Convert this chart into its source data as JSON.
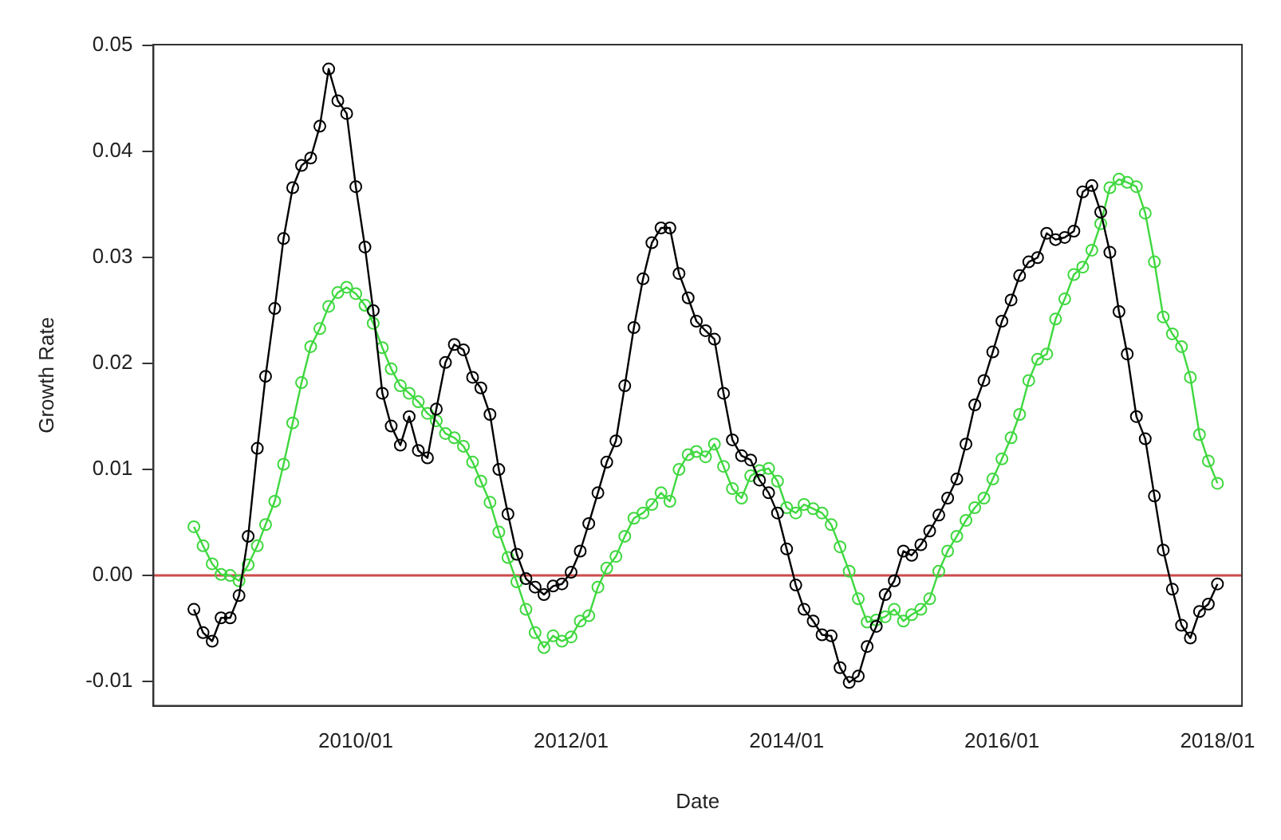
{
  "chart_data": {
    "type": "line",
    "xlabel": "Date",
    "ylabel": "Growth Rate",
    "x": [
      "2008-07",
      "2008-08",
      "2008-09",
      "2008-10",
      "2008-11",
      "2008-12",
      "2009-01",
      "2009-02",
      "2009-03",
      "2009-04",
      "2009-05",
      "2009-06",
      "2009-07",
      "2009-08",
      "2009-09",
      "2009-10",
      "2009-11",
      "2009-12",
      "2010-01",
      "2010-02",
      "2010-03",
      "2010-04",
      "2010-05",
      "2010-06",
      "2010-07",
      "2010-08",
      "2010-09",
      "2010-10",
      "2010-11",
      "2010-12",
      "2011-01",
      "2011-02",
      "2011-03",
      "2011-04",
      "2011-05",
      "2011-06",
      "2011-07",
      "2011-08",
      "2011-09",
      "2011-10",
      "2011-11",
      "2011-12",
      "2012-01",
      "2012-02",
      "2012-03",
      "2012-04",
      "2012-05",
      "2012-06",
      "2012-07",
      "2012-08",
      "2012-09",
      "2012-10",
      "2012-11",
      "2012-12",
      "2013-01",
      "2013-02",
      "2013-03",
      "2013-04",
      "2013-05",
      "2013-06",
      "2013-07",
      "2013-08",
      "2013-09",
      "2013-10",
      "2013-11",
      "2013-12",
      "2014-01",
      "2014-02",
      "2014-03",
      "2014-04",
      "2014-05",
      "2014-06",
      "2014-07",
      "2014-08",
      "2014-09",
      "2014-10",
      "2014-11",
      "2014-12",
      "2015-01",
      "2015-02",
      "2015-03",
      "2015-04",
      "2015-05",
      "2015-06",
      "2015-07",
      "2015-08",
      "2015-09",
      "2015-10",
      "2015-11",
      "2015-12",
      "2016-01",
      "2016-02",
      "2016-03",
      "2016-04",
      "2016-05",
      "2016-06",
      "2016-07",
      "2016-08",
      "2016-09",
      "2016-10",
      "2016-11",
      "2016-12",
      "2017-01",
      "2017-02",
      "2017-03",
      "2017-04",
      "2017-05",
      "2017-06",
      "2017-07",
      "2017-08",
      "2017-09",
      "2017-10",
      "2017-11",
      "2017-12",
      "2018-01"
    ],
    "series": [
      {
        "color": "#000000",
        "values": [
          -0.0032,
          -0.0054,
          -0.0062,
          -0.004,
          -0.004,
          -0.0019,
          0.0037,
          0.012,
          0.0188,
          0.0252,
          0.0318,
          0.0366,
          0.0387,
          0.0394,
          0.0424,
          0.0478,
          0.0448,
          0.0436,
          0.0367,
          0.031,
          0.025,
          0.0172,
          0.0141,
          0.0123,
          0.015,
          0.0118,
          0.0111,
          0.0157,
          0.0201,
          0.0218,
          0.0213,
          0.0187,
          0.0177,
          0.0152,
          0.01,
          0.0058,
          0.002,
          -0.0003,
          -0.0011,
          -0.0018,
          -0.001,
          -0.0008,
          0.0003,
          0.0023,
          0.0049,
          0.0078,
          0.0107,
          0.0127,
          0.0179,
          0.0234,
          0.028,
          0.0314,
          0.0328,
          0.0328,
          0.0285,
          0.0262,
          0.024,
          0.0231,
          0.0223,
          0.0172,
          0.0128,
          0.0113,
          0.0109,
          0.009,
          0.0078,
          0.0059,
          0.0025,
          -0.0009,
          -0.0032,
          -0.0043,
          -0.0056,
          -0.0057,
          -0.0087,
          -0.0101,
          -0.0095,
          -0.0067,
          -0.0048,
          -0.0018,
          -0.0005,
          0.0023,
          0.0019,
          0.0029,
          0.0042,
          0.0057,
          0.0073,
          0.0091,
          0.0124,
          0.0161,
          0.0184,
          0.0211,
          0.024,
          0.026,
          0.0283,
          0.0296,
          0.03,
          0.0323,
          0.0317,
          0.0319,
          0.0325,
          0.0362,
          0.0368,
          0.0343,
          0.0305,
          0.0249,
          0.0209,
          0.015,
          0.0129,
          0.0075,
          0.0024,
          -0.0013,
          -0.0047,
          -0.0059,
          -0.0034,
          -0.0027,
          -0.0008
        ]
      },
      {
        "color": "#3fd83f",
        "values": [
          0.0046,
          0.0028,
          0.0011,
          0.0001,
          0.0,
          -0.0005,
          0.001,
          0.0028,
          0.0048,
          0.007,
          0.0105,
          0.0144,
          0.0182,
          0.0216,
          0.0233,
          0.0254,
          0.0267,
          0.0272,
          0.0266,
          0.0255,
          0.0238,
          0.0215,
          0.0195,
          0.0179,
          0.0172,
          0.0164,
          0.0153,
          0.0146,
          0.0134,
          0.013,
          0.0122,
          0.0107,
          0.0089,
          0.0069,
          0.0041,
          0.0017,
          -0.0006,
          -0.0032,
          -0.0054,
          -0.0068,
          -0.0057,
          -0.0062,
          -0.0058,
          -0.0043,
          -0.0038,
          -0.0011,
          0.0007,
          0.0018,
          0.0037,
          0.0054,
          0.0059,
          0.0067,
          0.0078,
          0.007,
          0.01,
          0.0114,
          0.0117,
          0.0112,
          0.0124,
          0.0103,
          0.0082,
          0.0073,
          0.0094,
          0.0099,
          0.0101,
          0.0089,
          0.0064,
          0.0059,
          0.0067,
          0.0063,
          0.0059,
          0.0048,
          0.0027,
          0.0004,
          -0.0022,
          -0.0044,
          -0.0042,
          -0.0039,
          -0.0032,
          -0.0043,
          -0.0037,
          -0.0032,
          -0.0022,
          0.0004,
          0.0023,
          0.0037,
          0.0052,
          0.0064,
          0.0073,
          0.0091,
          0.011,
          0.013,
          0.0152,
          0.0184,
          0.0204,
          0.0209,
          0.0242,
          0.0261,
          0.0284,
          0.0291,
          0.0307,
          0.0332,
          0.0366,
          0.0374,
          0.0371,
          0.0367,
          0.0342,
          0.0296,
          0.0244,
          0.0228,
          0.0216,
          0.0187,
          0.0133,
          0.0108,
          0.0087
        ]
      }
    ],
    "xlim": [
      "2008-02-15",
      "2018-03-25"
    ],
    "xticks": [
      {
        "value": "2010-01",
        "label": "2010/01"
      },
      {
        "value": "2012-01",
        "label": "2012/01"
      },
      {
        "value": "2014-01",
        "label": "2014/01"
      },
      {
        "value": "2016-01",
        "label": "2016/01"
      },
      {
        "value": "2018-01",
        "label": "2018/01"
      }
    ],
    "ylim": [
      -0.0123,
      0.0501
    ],
    "yticks": [
      {
        "value": -0.01,
        "label": "-0.01"
      },
      {
        "value": 0,
        "label": "0.00"
      },
      0.01,
      0.02,
      0.03,
      0.04,
      0.05
    ],
    "ref_lines": [
      {
        "axis": "y",
        "value": 0,
        "color": "#cc4b4b"
      }
    ],
    "marker": "circle",
    "line_style": "solid",
    "grid": false,
    "legend": false
  }
}
